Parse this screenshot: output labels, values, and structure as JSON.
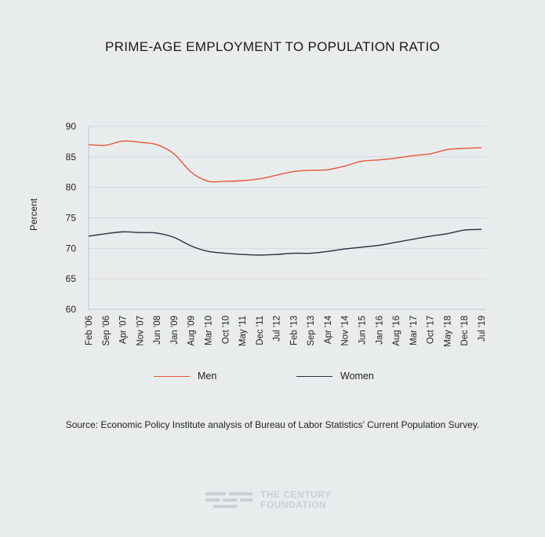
{
  "chart_data": {
    "type": "line",
    "title": "PRIME-AGE EMPLOYMENT TO POPULATION RATIO",
    "ylabel": "Percent",
    "xlabel": "",
    "ylim": [
      60,
      90
    ],
    "yticks": [
      90,
      85,
      80,
      75,
      70,
      65,
      60
    ],
    "tick_labels": [
      "Feb '06",
      "Sep '06",
      "Apr '07",
      "Nov '07",
      "Jun '08",
      "Jan '09",
      "Aug '09",
      "Mar '10",
      "Oct '10",
      "May '11",
      "Dec '11",
      "Jul '12",
      "Feb '13",
      "Sep '13",
      "Apr '14",
      "Nov '14",
      "Jun '15",
      "Jan '16",
      "Aug '16",
      "Mar '17",
      "Oct '17",
      "May '18",
      "Dec '18",
      "Jul '19"
    ],
    "grid": true,
    "series": [
      {
        "name": "Men",
        "color": "#e8543a",
        "values": [
          87.0,
          86.9,
          87.6,
          87.4,
          87.0,
          85.5,
          82.5,
          81.0,
          81.0,
          81.1,
          81.4,
          82.0,
          82.6,
          82.8,
          82.9,
          83.5,
          84.3,
          84.5,
          84.8,
          85.2,
          85.5,
          86.2,
          86.4,
          86.5
        ]
      },
      {
        "name": "Women",
        "color": "#2b2f3d",
        "values": [
          72.0,
          72.4,
          72.7,
          72.6,
          72.5,
          71.8,
          70.4,
          69.5,
          69.2,
          69.0,
          68.9,
          69.0,
          69.2,
          69.2,
          69.5,
          69.9,
          70.2,
          70.5,
          71.0,
          71.5,
          72.0,
          72.4,
          73.0,
          73.1
        ]
      }
    ]
  },
  "legend": {
    "men": "Men",
    "women": "Women"
  },
  "source": "Source:  Economic Policy Institute analysis of Bureau of Labor Statistics’ Current Population Survey.",
  "logo": {
    "line1": "THE CENTURY",
    "line2": "FOUNDATION"
  }
}
